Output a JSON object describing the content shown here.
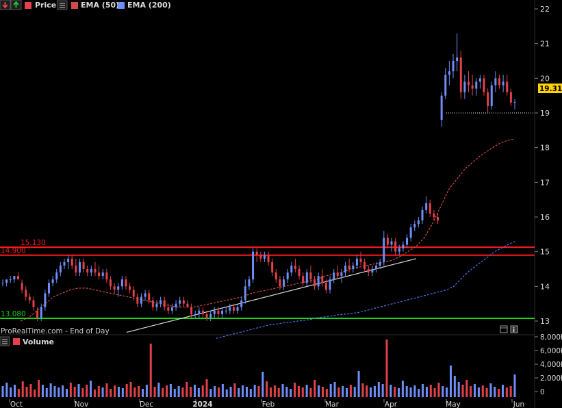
{
  "header": {
    "price_label": "Price",
    "ema50_label": "EMA (50)",
    "ema200_label": "EMA (200)",
    "down_arrow_icon": "red-down-arrow-icon",
    "up_arrow_icon": "green-up-arrow-icon",
    "menu_icon": "hamburger-icon"
  },
  "footer": {
    "source": "ProRealTime.com - End of Day",
    "calendar_icon": "calendar-icon",
    "info_icon": "info-icon"
  },
  "volume_panel": {
    "label": "Volume",
    "menu_icon": "hamburger-icon"
  },
  "colors": {
    "up": "#6f8ef8",
    "down": "#e4414a",
    "ema50": "#d44a4a",
    "ema200": "#4b73ee",
    "resistance": "#ff1a1a",
    "support": "#19d419",
    "trend": "#d9d9d9",
    "last_price_bg": "#ffd200"
  },
  "chart_data": {
    "type": "candlestick",
    "y_axis": {
      "ticks": [
        13,
        14,
        15,
        16,
        17,
        18,
        19,
        20,
        21,
        22
      ],
      "range": [
        12.8,
        22.2
      ]
    },
    "x_axis": {
      "labels": [
        "Oct",
        "Nov",
        "Dec",
        "2024",
        "Feb",
        "Mar",
        "Apr",
        "May",
        "Jun"
      ]
    },
    "last_price": "19.315",
    "levels": [
      {
        "name": "resistance_upper",
        "value": 15.13,
        "label": "15.130",
        "color": "#ff1a1a"
      },
      {
        "name": "resistance_lower",
        "value": 14.9,
        "label": "14.900",
        "color": "#ff1a1a"
      },
      {
        "name": "support",
        "value": 13.08,
        "label": "13.080",
        "color": "#19d419"
      }
    ],
    "trendline": {
      "from": {
        "date": "Dec",
        "value": 13.03
      },
      "to": {
        "date": "Mar",
        "value": 14.8
      }
    },
    "candles": [
      [
        14.1,
        14.2,
        14.0,
        14.1
      ],
      [
        14.1,
        14.2,
        14.0,
        14.2
      ],
      [
        14.2,
        14.3,
        14.1,
        14.2
      ],
      [
        14.2,
        14.3,
        14.1,
        14.3
      ],
      [
        14.3,
        14.4,
        14.2,
        14.2
      ],
      [
        14.1,
        14.2,
        13.8,
        13.9
      ],
      [
        13.9,
        14.0,
        13.6,
        13.7
      ],
      [
        13.7,
        13.8,
        13.5,
        13.6
      ],
      [
        13.6,
        13.7,
        13.3,
        13.4
      ],
      [
        13.3,
        13.4,
        13.0,
        13.1
      ],
      [
        13.1,
        13.5,
        13.0,
        13.4
      ],
      [
        13.4,
        13.9,
        13.3,
        13.8
      ],
      [
        13.8,
        14.2,
        13.7,
        14.1
      ],
      [
        14.1,
        14.3,
        14.0,
        14.2
      ],
      [
        14.2,
        14.5,
        14.1,
        14.4
      ],
      [
        14.4,
        14.7,
        14.3,
        14.6
      ],
      [
        14.6,
        14.8,
        14.5,
        14.7
      ],
      [
        14.7,
        14.9,
        14.5,
        14.8
      ],
      [
        14.8,
        14.9,
        14.5,
        14.6
      ],
      [
        14.6,
        14.8,
        14.3,
        14.4
      ],
      [
        14.4,
        14.8,
        14.3,
        14.7
      ],
      [
        14.7,
        14.8,
        14.4,
        14.5
      ],
      [
        14.5,
        14.6,
        14.3,
        14.4
      ],
      [
        14.4,
        14.6,
        14.3,
        14.5
      ],
      [
        14.5,
        14.7,
        14.3,
        14.4
      ],
      [
        14.4,
        14.6,
        14.2,
        14.3
      ],
      [
        14.3,
        14.5,
        14.2,
        14.4
      ],
      [
        14.4,
        14.5,
        14.1,
        14.2
      ],
      [
        14.2,
        14.3,
        13.9,
        14.0
      ],
      [
        14.0,
        14.1,
        13.8,
        13.9
      ],
      [
        13.9,
        14.1,
        13.7,
        14.0
      ],
      [
        14.0,
        14.3,
        13.9,
        14.2
      ],
      [
        14.2,
        14.3,
        13.9,
        14.0
      ],
      [
        14.0,
        14.1,
        13.8,
        13.9
      ],
      [
        13.9,
        14.0,
        13.6,
        13.7
      ],
      [
        13.7,
        13.8,
        13.4,
        13.5
      ],
      [
        13.5,
        13.8,
        13.4,
        13.7
      ],
      [
        13.7,
        13.9,
        13.6,
        13.8
      ],
      [
        13.8,
        13.9,
        13.5,
        13.6
      ],
      [
        13.6,
        13.7,
        13.3,
        13.4
      ],
      [
        13.4,
        13.6,
        13.3,
        13.5
      ],
      [
        13.5,
        13.7,
        13.4,
        13.6
      ],
      [
        13.6,
        13.7,
        13.3,
        13.4
      ],
      [
        13.4,
        13.5,
        13.2,
        13.3
      ],
      [
        13.3,
        13.5,
        13.2,
        13.4
      ],
      [
        13.4,
        13.6,
        13.3,
        13.5
      ],
      [
        13.5,
        13.7,
        13.4,
        13.6
      ],
      [
        13.6,
        13.7,
        13.4,
        13.5
      ],
      [
        13.5,
        13.6,
        13.4,
        13.4
      ],
      [
        13.4,
        13.5,
        13.1,
        13.2
      ],
      [
        13.2,
        13.3,
        13.1,
        13.2
      ],
      [
        13.2,
        13.4,
        13.1,
        13.3
      ],
      [
        13.3,
        13.4,
        13.1,
        13.2
      ],
      [
        13.2,
        13.3,
        13.0,
        13.1
      ],
      [
        13.1,
        13.3,
        13.0,
        13.2
      ],
      [
        13.2,
        13.4,
        13.1,
        13.3
      ],
      [
        13.3,
        13.4,
        13.1,
        13.2
      ],
      [
        13.2,
        13.4,
        13.1,
        13.3
      ],
      [
        13.3,
        13.4,
        13.2,
        13.3
      ],
      [
        13.3,
        13.5,
        13.2,
        13.4
      ],
      [
        13.4,
        13.5,
        13.2,
        13.3
      ],
      [
        13.3,
        13.5,
        13.2,
        13.4
      ],
      [
        13.4,
        13.7,
        13.3,
        13.6
      ],
      [
        13.6,
        14.2,
        13.5,
        14.0
      ],
      [
        14.0,
        14.3,
        13.9,
        14.2
      ],
      [
        14.2,
        15.1,
        14.1,
        15.0
      ],
      [
        15.0,
        15.1,
        14.7,
        14.9
      ],
      [
        14.9,
        15.0,
        14.7,
        14.8
      ],
      [
        14.8,
        15.0,
        14.7,
        14.9
      ],
      [
        14.9,
        15.0,
        14.6,
        14.7
      ],
      [
        14.7,
        14.8,
        14.3,
        14.4
      ],
      [
        14.4,
        14.5,
        14.1,
        14.2
      ],
      [
        14.2,
        14.3,
        13.9,
        14.0
      ],
      [
        14.0,
        14.3,
        13.9,
        14.2
      ],
      [
        14.2,
        14.5,
        14.1,
        14.4
      ],
      [
        14.4,
        14.7,
        14.3,
        14.6
      ],
      [
        14.6,
        14.8,
        14.4,
        14.5
      ],
      [
        14.5,
        14.6,
        14.2,
        14.3
      ],
      [
        14.3,
        14.4,
        14.0,
        14.1
      ],
      [
        14.1,
        14.5,
        14.0,
        14.4
      ],
      [
        14.4,
        14.6,
        14.1,
        14.2
      ],
      [
        14.2,
        14.3,
        13.9,
        14.0
      ],
      [
        14.0,
        14.4,
        13.9,
        14.3
      ],
      [
        14.3,
        14.5,
        14.0,
        14.1
      ],
      [
        14.1,
        14.2,
        13.8,
        13.9
      ],
      [
        13.9,
        14.3,
        13.8,
        14.2
      ],
      [
        14.2,
        14.5,
        14.1,
        14.4
      ],
      [
        14.4,
        14.6,
        14.2,
        14.3
      ],
      [
        14.3,
        14.5,
        14.1,
        14.4
      ],
      [
        14.4,
        14.7,
        14.3,
        14.6
      ],
      [
        14.6,
        14.8,
        14.4,
        14.5
      ],
      [
        14.5,
        14.7,
        14.4,
        14.6
      ],
      [
        14.6,
        14.9,
        14.5,
        14.8
      ],
      [
        14.8,
        15.0,
        14.6,
        14.7
      ],
      [
        14.7,
        14.8,
        14.4,
        14.5
      ],
      [
        14.5,
        14.6,
        14.3,
        14.4
      ],
      [
        14.4,
        14.6,
        14.3,
        14.5
      ],
      [
        14.5,
        14.7,
        14.4,
        14.6
      ],
      [
        14.6,
        14.8,
        14.5,
        14.7
      ],
      [
        14.7,
        15.6,
        14.6,
        15.4
      ],
      [
        15.4,
        15.5,
        15.1,
        15.2
      ],
      [
        15.2,
        15.4,
        15.0,
        15.3
      ],
      [
        15.3,
        15.4,
        14.9,
        15.0
      ],
      [
        15.0,
        15.2,
        14.9,
        15.1
      ],
      [
        15.1,
        15.3,
        15.0,
        15.2
      ],
      [
        15.2,
        15.5,
        15.1,
        15.4
      ],
      [
        15.4,
        15.8,
        15.3,
        15.7
      ],
      [
        15.7,
        15.9,
        15.6,
        15.8
      ],
      [
        15.8,
        16.0,
        15.7,
        15.9
      ],
      [
        15.9,
        16.3,
        15.8,
        16.2
      ],
      [
        16.2,
        16.6,
        16.1,
        16.4
      ],
      [
        16.4,
        16.5,
        16.0,
        16.1
      ],
      [
        16.1,
        16.2,
        15.9,
        16.0
      ],
      [
        16.0,
        16.1,
        15.8,
        15.9
      ],
      [
        18.8,
        19.6,
        18.6,
        19.5
      ],
      [
        19.5,
        20.3,
        19.4,
        20.1
      ],
      [
        20.1,
        20.5,
        19.8,
        20.2
      ],
      [
        20.2,
        20.7,
        20.0,
        20.5
      ],
      [
        20.5,
        21.3,
        20.2,
        20.6
      ],
      [
        20.6,
        20.8,
        19.4,
        19.6
      ],
      [
        19.6,
        20.1,
        19.4,
        19.9
      ],
      [
        19.9,
        20.2,
        19.6,
        19.8
      ],
      [
        19.8,
        20.1,
        19.5,
        19.7
      ],
      [
        19.7,
        20.0,
        19.5,
        19.9
      ],
      [
        19.9,
        20.1,
        19.7,
        20.0
      ],
      [
        20.0,
        20.1,
        19.5,
        19.6
      ],
      [
        19.6,
        19.7,
        19.0,
        19.2
      ],
      [
        19.2,
        19.9,
        19.1,
        19.8
      ],
      [
        19.8,
        20.2,
        19.6,
        20.0
      ],
      [
        20.0,
        20.1,
        19.7,
        19.8
      ],
      [
        19.8,
        20.1,
        19.6,
        19.9
      ],
      [
        19.9,
        20.1,
        19.5,
        19.6
      ],
      [
        19.6,
        19.7,
        19.2,
        19.3
      ],
      [
        19.3,
        19.4,
        19.1,
        19.315
      ]
    ],
    "ema50": [
      13.0,
      13.1,
      13.3,
      13.5,
      13.7,
      13.8,
      13.9,
      13.95,
      13.95,
      13.9,
      13.85,
      13.8,
      13.75,
      13.7,
      13.65,
      13.6,
      13.55,
      13.5,
      13.45,
      13.4,
      13.4,
      13.4,
      13.45,
      13.5,
      13.55,
      13.6,
      13.65,
      13.7,
      13.8,
      13.85,
      13.9,
      13.95,
      14.0,
      14.05,
      14.1,
      14.15,
      14.2,
      14.3,
      14.35,
      14.4,
      14.5,
      14.55,
      14.6,
      14.65,
      14.7,
      14.75,
      14.85,
      15.0,
      15.15,
      15.4,
      15.8,
      16.3,
      16.8,
      17.1,
      17.4,
      17.6,
      17.8,
      17.95,
      18.1,
      18.2,
      18.25
    ],
    "ema200": [
      12.5,
      12.55,
      12.6,
      12.65,
      12.7,
      12.75,
      12.8,
      12.85,
      12.9,
      12.92,
      12.95,
      12.97,
      13.0,
      13.02,
      13.05,
      13.1,
      13.12,
      13.15,
      13.18,
      13.2,
      13.22,
      13.25,
      13.3,
      13.35,
      13.4,
      13.45,
      13.5,
      13.55,
      13.6,
      13.65,
      13.7,
      13.75,
      13.8,
      13.85,
      13.9,
      14.0,
      14.2,
      14.4,
      14.55,
      14.7,
      14.85,
      15.0,
      15.1,
      15.2,
      15.3
    ],
    "volume": {
      "ticks": [
        "0",
        "2,000k",
        "4,000k",
        "6,000k",
        "8,000k"
      ],
      "max": 8000,
      "values": [
        1600,
        2100,
        1400,
        1800,
        1200,
        2300,
        1500,
        1900,
        1100,
        2500,
        1800,
        1300,
        2000,
        1600,
        1400,
        1700,
        1200,
        2100,
        1500,
        1900,
        1300,
        1800,
        2400,
        1100,
        1600,
        1400,
        2000,
        1200,
        1700,
        1500,
        1300,
        1900,
        2200,
        1400,
        1600,
        1200,
        1800,
        7800,
        1500,
        2100,
        1300,
        1700,
        1900,
        1200,
        1600,
        1400,
        2200,
        1500,
        1800,
        1300,
        1700,
        2600,
        1200,
        1600,
        1400,
        1900,
        1100,
        1500,
        2000,
        1300,
        1700,
        1500,
        1200,
        1800,
        1600,
        3700,
        2300,
        1400,
        1700,
        1300,
        1900,
        1500,
        1200,
        2100,
        1600,
        1400,
        1800,
        1300,
        2500,
        1700,
        1500,
        1200,
        1900,
        2200,
        1400,
        1600,
        1300,
        1800,
        1500,
        3800,
        2000,
        1700,
        1400,
        1600,
        2200,
        1900,
        8400,
        1800,
        1500,
        1300,
        2400,
        1600,
        1400,
        1700,
        1200,
        1900,
        1500,
        1800,
        1300,
        2100,
        1600,
        1400,
        4600,
        3100,
        2200,
        1800,
        2500,
        1600,
        1900,
        1400,
        1700,
        1300,
        2000,
        1500,
        1200,
        1800,
        1400,
        1600,
        3300
      ]
    }
  }
}
